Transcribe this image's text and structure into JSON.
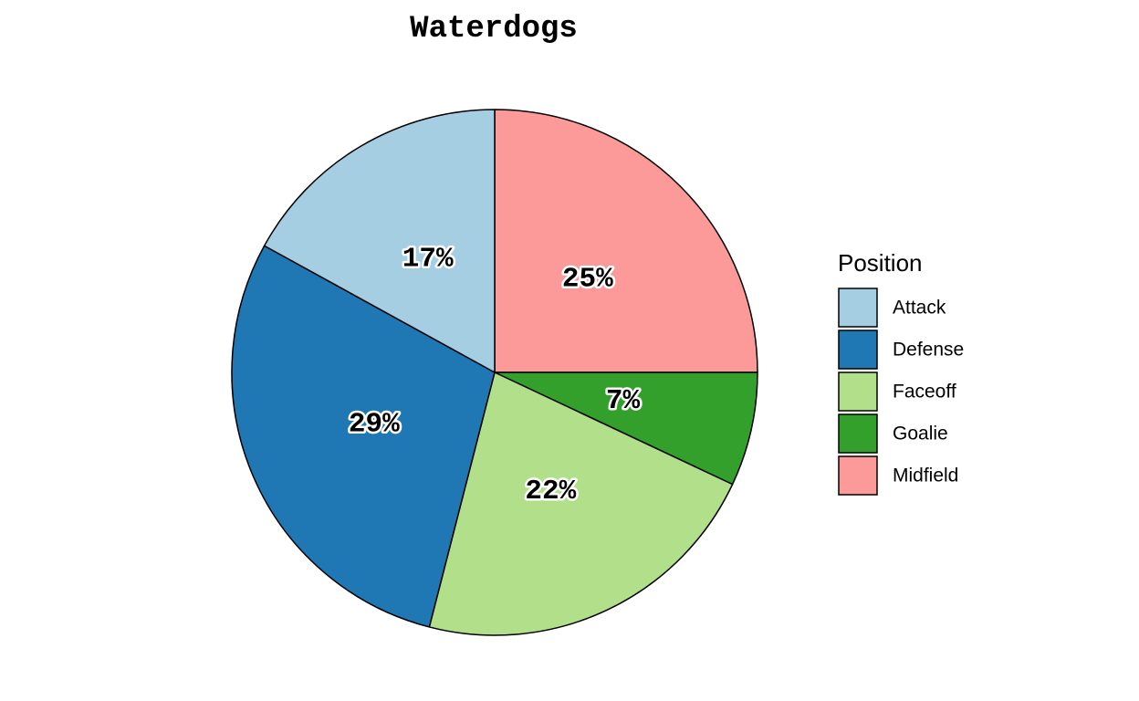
{
  "chart_data": {
    "type": "pie",
    "title": "Waterdogs",
    "legend_title": "Position",
    "legend_position": "right",
    "start_angle": "12 o'clock",
    "direction": "clockwise",
    "slices": [
      {
        "name": "Midfield",
        "value": 25,
        "label": "25%",
        "color": "#FB9A99"
      },
      {
        "name": "Goalie",
        "value": 7,
        "label": "7%",
        "color": "#33A02C"
      },
      {
        "name": "Faceoff",
        "value": 22,
        "label": "22%",
        "color": "#B2DF8A"
      },
      {
        "name": "Defense",
        "value": 29,
        "label": "29%",
        "color": "#1F78B4"
      },
      {
        "name": "Attack",
        "value": 17,
        "label": "17%",
        "color": "#A6CEE3"
      }
    ],
    "legend_entries": [
      {
        "name": "Attack",
        "color": "#A6CEE3"
      },
      {
        "name": "Defense",
        "color": "#1F78B4"
      },
      {
        "name": "Faceoff",
        "color": "#B2DF8A"
      },
      {
        "name": "Goalie",
        "color": "#33A02C"
      },
      {
        "name": "Midfield",
        "color": "#FB9A99"
      }
    ]
  }
}
